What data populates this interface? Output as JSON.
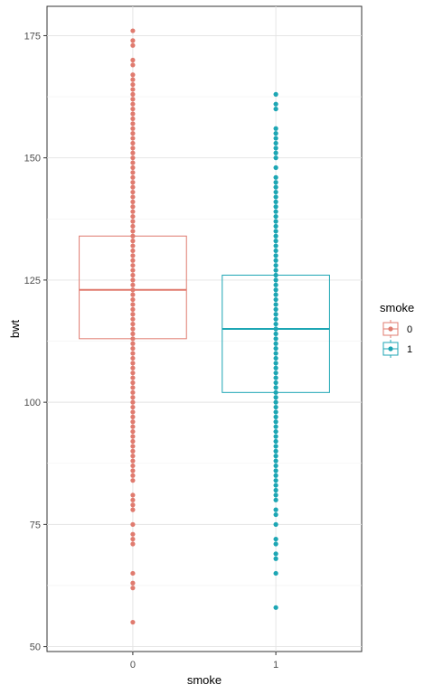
{
  "chart_data": {
    "type": "boxplot",
    "title": "",
    "xlabel": "smoke",
    "ylabel": "bwt",
    "ylim": [
      49,
      181
    ],
    "yticks": [
      50,
      75,
      100,
      125,
      150,
      175
    ],
    "categories": [
      "0",
      "1"
    ],
    "grid": true,
    "legend": {
      "title": "smoke",
      "placement": "right",
      "entries": [
        "0",
        "1"
      ]
    },
    "series": [
      {
        "name": "0",
        "color": "#E07B6F",
        "q1": 113,
        "median": 123,
        "q3": 134,
        "points": [
          55,
          62,
          63,
          65,
          71,
          72,
          73,
          75,
          78,
          79,
          80,
          81,
          84,
          85,
          86,
          87,
          88,
          89,
          90,
          91,
          92,
          93,
          94,
          95,
          96,
          97,
          98,
          99,
          100,
          101,
          102,
          103,
          104,
          105,
          106,
          107,
          108,
          109,
          110,
          111,
          112,
          113,
          114,
          115,
          116,
          117,
          118,
          119,
          120,
          121,
          122,
          123,
          124,
          125,
          126,
          127,
          128,
          129,
          130,
          131,
          132,
          133,
          134,
          135,
          136,
          137,
          138,
          139,
          140,
          141,
          142,
          143,
          144,
          145,
          146,
          147,
          148,
          149,
          150,
          151,
          152,
          153,
          154,
          155,
          156,
          157,
          158,
          159,
          160,
          161,
          162,
          163,
          164,
          165,
          166,
          167,
          169,
          170,
          173,
          174,
          176
        ]
      },
      {
        "name": "1",
        "color": "#1DA6B4",
        "q1": 102,
        "median": 115,
        "q3": 126,
        "points": [
          58,
          65,
          68,
          69,
          71,
          72,
          75,
          77,
          78,
          80,
          81,
          82,
          83,
          84,
          85,
          86,
          87,
          88,
          89,
          90,
          91,
          92,
          93,
          94,
          95,
          96,
          97,
          98,
          99,
          100,
          101,
          102,
          103,
          104,
          105,
          106,
          107,
          108,
          109,
          110,
          111,
          112,
          113,
          114,
          115,
          116,
          117,
          118,
          119,
          120,
          121,
          122,
          123,
          124,
          125,
          126,
          127,
          128,
          129,
          130,
          131,
          132,
          133,
          134,
          135,
          136,
          137,
          138,
          139,
          140,
          141,
          142,
          143,
          144,
          145,
          146,
          148,
          150,
          151,
          152,
          153,
          154,
          155,
          156,
          160,
          161,
          163
        ]
      }
    ]
  }
}
